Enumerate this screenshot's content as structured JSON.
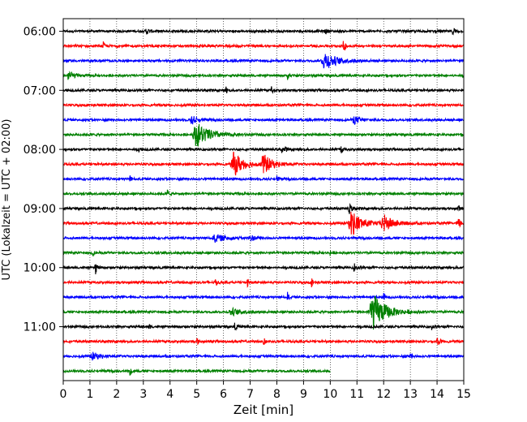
{
  "chart_data": {
    "type": "line",
    "title": "",
    "xlabel": "Zeit  [min]",
    "ylabel": "UTC (Lokalzeit = UTC + 02:00)",
    "xlim": [
      0,
      15
    ],
    "x_ticks": [
      "0",
      "1",
      "2",
      "3",
      "4",
      "5",
      "6",
      "7",
      "8",
      "9",
      "10",
      "11",
      "12",
      "13",
      "14",
      "15"
    ],
    "y_ticks": [
      "06:00",
      "07:00",
      "08:00",
      "09:00",
      "10:00",
      "11:00"
    ],
    "grid": "vertical dotted",
    "trace_interval_min": 15,
    "colors": [
      "#000000",
      "#ff0000",
      "#0000ff",
      "#008000"
    ],
    "traces": [
      {
        "start": "06:00",
        "color": "#000000",
        "end_min": 15,
        "events": [
          {
            "t": 3.1,
            "a": 0.35,
            "w": 0.12
          },
          {
            "t": 9.8,
            "a": 0.3,
            "w": 0.1
          },
          {
            "t": 14.6,
            "a": 0.55,
            "w": 0.08
          }
        ]
      },
      {
        "start": "06:15",
        "color": "#ff0000",
        "end_min": 15,
        "events": [
          {
            "t": 1.5,
            "a": 0.45,
            "w": 0.05
          },
          {
            "t": 10.5,
            "a": 1.2,
            "w": 0.05
          }
        ]
      },
      {
        "start": "06:30",
        "color": "#0000ff",
        "end_min": 15,
        "events": [
          {
            "t": 9.8,
            "a": 1.1,
            "w": 0.4
          }
        ]
      },
      {
        "start": "06:45",
        "color": "#008000",
        "end_min": 15,
        "events": [
          {
            "t": 0.2,
            "a": 0.7,
            "w": 0.15
          },
          {
            "t": 8.4,
            "a": 0.4,
            "w": 0.06
          }
        ]
      },
      {
        "start": "07:00",
        "color": "#000000",
        "end_min": 15,
        "events": [
          {
            "t": 6.1,
            "a": 0.4,
            "w": 0.05
          },
          {
            "t": 7.8,
            "a": 0.45,
            "w": 0.05
          }
        ]
      },
      {
        "start": "07:15",
        "color": "#ff0000",
        "end_min": 15,
        "events": []
      },
      {
        "start": "07:30",
        "color": "#0000ff",
        "end_min": 15,
        "events": [
          {
            "t": 4.8,
            "a": 0.55,
            "w": 0.2
          },
          {
            "t": 10.9,
            "a": 0.45,
            "w": 0.25
          }
        ]
      },
      {
        "start": "07:45",
        "color": "#008000",
        "end_min": 15,
        "events": [
          {
            "t": 5.0,
            "a": 1.5,
            "w": 0.45
          }
        ]
      },
      {
        "start": "08:00",
        "color": "#000000",
        "end_min": 15,
        "events": [
          {
            "t": 2.8,
            "a": 0.45,
            "w": 0.05
          },
          {
            "t": 8.2,
            "a": 0.4,
            "w": 0.15
          },
          {
            "t": 10.4,
            "a": 0.5,
            "w": 0.06
          }
        ]
      },
      {
        "start": "08:15",
        "color": "#ff0000",
        "end_min": 15,
        "events": [
          {
            "t": 6.4,
            "a": 1.45,
            "w": 0.35
          },
          {
            "t": 7.5,
            "a": 1.2,
            "w": 0.3
          }
        ]
      },
      {
        "start": "08:30",
        "color": "#0000ff",
        "end_min": 15,
        "events": [
          {
            "t": 2.5,
            "a": 0.4,
            "w": 0.05
          },
          {
            "t": 8.0,
            "a": 0.4,
            "w": 0.05
          }
        ]
      },
      {
        "start": "08:45",
        "color": "#008000",
        "end_min": 15,
        "events": [
          {
            "t": 3.9,
            "a": 0.5,
            "w": 0.05
          }
        ]
      },
      {
        "start": "09:00",
        "color": "#000000",
        "end_min": 15,
        "events": [
          {
            "t": 10.7,
            "a": 0.7,
            "w": 0.08
          },
          {
            "t": 14.8,
            "a": 0.45,
            "w": 0.05
          }
        ]
      },
      {
        "start": "09:15",
        "color": "#ff0000",
        "end_min": 15,
        "events": [
          {
            "t": 10.8,
            "a": 1.6,
            "w": 0.35
          },
          {
            "t": 12.0,
            "a": 1.0,
            "w": 0.35
          },
          {
            "t": 14.8,
            "a": 0.6,
            "w": 0.1
          }
        ]
      },
      {
        "start": "09:30",
        "color": "#0000ff",
        "end_min": 15,
        "events": [
          {
            "t": 5.7,
            "a": 0.45,
            "w": 0.35
          },
          {
            "t": 7.0,
            "a": 0.35,
            "w": 0.2
          }
        ]
      },
      {
        "start": "09:45",
        "color": "#008000",
        "end_min": 15,
        "events": [
          {
            "t": 1.1,
            "a": 0.45,
            "w": 0.05
          },
          {
            "t": 10.0,
            "a": 0.35,
            "w": 0.05
          }
        ]
      },
      {
        "start": "10:00",
        "color": "#000000",
        "end_min": 15,
        "events": [
          {
            "t": 1.2,
            "a": 0.9,
            "w": 0.06
          },
          {
            "t": 10.9,
            "a": 0.5,
            "w": 0.1
          }
        ]
      },
      {
        "start": "10:15",
        "color": "#ff0000",
        "end_min": 15,
        "events": [
          {
            "t": 5.7,
            "a": 0.5,
            "w": 0.05
          },
          {
            "t": 6.9,
            "a": 0.55,
            "w": 0.05
          },
          {
            "t": 9.3,
            "a": 0.5,
            "w": 0.05
          }
        ]
      },
      {
        "start": "10:30",
        "color": "#0000ff",
        "end_min": 15,
        "events": [
          {
            "t": 8.4,
            "a": 0.55,
            "w": 0.05
          },
          {
            "t": 12.0,
            "a": 0.45,
            "w": 0.05
          }
        ]
      },
      {
        "start": "10:45",
        "color": "#008000",
        "end_min": 15,
        "events": [
          {
            "t": 6.3,
            "a": 0.4,
            "w": 0.35
          },
          {
            "t": 11.6,
            "a": 2.2,
            "w": 0.45
          }
        ]
      },
      {
        "start": "11:00",
        "color": "#000000",
        "end_min": 15,
        "events": [
          {
            "t": 3.2,
            "a": 0.45,
            "w": 0.05
          },
          {
            "t": 6.4,
            "a": 0.5,
            "w": 0.08
          },
          {
            "t": 13.8,
            "a": 0.4,
            "w": 0.05
          }
        ]
      },
      {
        "start": "11:15",
        "color": "#ff0000",
        "end_min": 15,
        "events": [
          {
            "t": 5.0,
            "a": 0.45,
            "w": 0.05
          },
          {
            "t": 7.5,
            "a": 0.55,
            "w": 0.05
          },
          {
            "t": 14.0,
            "a": 0.45,
            "w": 0.1
          }
        ]
      },
      {
        "start": "11:30",
        "color": "#0000ff",
        "end_min": 15,
        "events": [
          {
            "t": 1.1,
            "a": 0.45,
            "w": 0.25
          },
          {
            "t": 13.0,
            "a": 0.55,
            "w": 0.06
          }
        ]
      },
      {
        "start": "11:45",
        "color": "#008000",
        "end_min": 10.0,
        "events": [
          {
            "t": 2.5,
            "a": 0.45,
            "w": 0.08
          }
        ]
      }
    ]
  }
}
